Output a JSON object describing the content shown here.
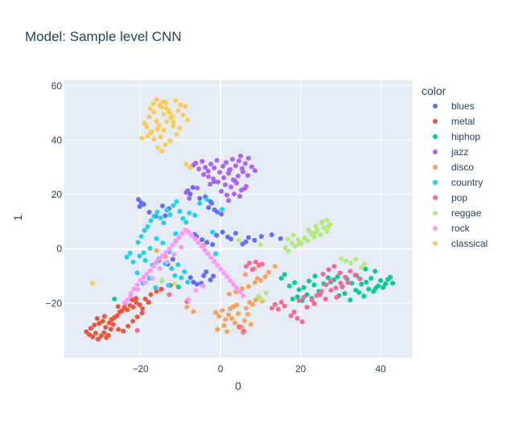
{
  "chart_data": {
    "type": "scatter",
    "title": "Model: Sample level CNN",
    "xlabel": "0",
    "ylabel": "1",
    "xlim": [
      -39,
      48
    ],
    "ylim": [
      -40,
      62
    ],
    "xticks": [
      -20,
      0,
      20,
      40
    ],
    "yticks": [
      -20,
      0,
      20,
      40,
      60
    ],
    "xtick_labels": [
      "−20",
      "0",
      "20",
      "40"
    ],
    "ytick_labels": [
      "−20",
      "0",
      "20",
      "40",
      "60"
    ],
    "grid": true,
    "legend": {
      "title": "color",
      "position": "right"
    },
    "series": [
      {
        "name": "blues",
        "color": "#636efa",
        "x": [
          -20.5,
          -19.8,
          -20.2,
          -19.2,
          -14.5,
          -13.8,
          -12.9,
          -17.8,
          -16.2,
          -7.5,
          -6.8,
          -5.9,
          -4.8,
          -4.2,
          -3.6,
          -2.5,
          -1.8,
          -3.0,
          -2.2,
          -1.5,
          -0.8,
          0.2,
          -6.5,
          -6.0,
          -4.6,
          -3.4,
          -2.0,
          -1.0,
          0.5,
          1.8,
          2.6,
          3.8,
          5.5,
          6.3,
          7.0,
          8.5,
          10.2,
          12.8,
          15.0,
          -8.2,
          -7.6,
          -6.9,
          -5.2,
          -3.8,
          -2.5,
          -1.6,
          -15.4,
          -13.2,
          -11.9
        ],
        "y": [
          18.2,
          17.0,
          15.6,
          16.4,
          15.8,
          12.2,
          14.8,
          13.5,
          12.0,
          -10.5,
          -12.2,
          -13.0,
          -12.6,
          -9.8,
          -8.4,
          -11.4,
          -10.0,
          15.2,
          16.8,
          14.4,
          13.6,
          12.8,
          5.4,
          4.6,
          3.4,
          2.4,
          1.6,
          5.0,
          6.2,
          4.4,
          3.6,
          5.8,
          1.8,
          2.6,
          4.2,
          3.2,
          4.6,
          5.2,
          3.8,
          21.4,
          20.2,
          22.6,
          18.6,
          19.2,
          17.4,
          24.8,
          -4.2,
          -5.6,
          -3.8
        ]
      },
      {
        "name": "metal",
        "color": "#ef553b",
        "x": [
          -33.5,
          -32.8,
          -31.9,
          -31.2,
          -30.6,
          -29.8,
          -29.1,
          -28.5,
          -28.0,
          -27.4,
          -32.4,
          -31.5,
          -30.3,
          -29.4,
          -28.7,
          -27.8,
          -30.8,
          -29.0,
          -27.2,
          -26.5,
          -25.8,
          -25.2,
          -24.6,
          -24.0,
          -23.3,
          -22.6,
          -21.8,
          -21.0,
          -20.2,
          -19.5,
          -26.8,
          -25.5,
          -24.3,
          -23.1,
          -21.9,
          -20.8,
          -19.6,
          -22.0,
          -18.8,
          -18.0,
          -25.6,
          -23.9,
          -22.4,
          -21.1,
          -12.5,
          -14.8,
          -16.0,
          -17.4
        ],
        "y": [
          -30.5,
          -31.5,
          -32.4,
          -31.0,
          -33.2,
          -32.0,
          -30.8,
          -32.6,
          -31.8,
          -29.5,
          -29.2,
          -28.0,
          -27.4,
          -26.6,
          -28.8,
          -27.2,
          -25.6,
          -24.8,
          -26.0,
          -25.2,
          -24.6,
          -23.2,
          -22.8,
          -21.6,
          -22.4,
          -20.8,
          -21.4,
          -19.8,
          -20.6,
          -22.0,
          -27.8,
          -29.6,
          -30.2,
          -28.4,
          -26.6,
          -25.0,
          -23.6,
          -18.8,
          -18.4,
          -19.6,
          -21.2,
          -20.0,
          -17.2,
          -18.2,
          -13.4,
          -14.8,
          -15.6,
          -16.8
        ]
      },
      {
        "name": "hiphop",
        "color": "#00cc96",
        "x": [
          17.2,
          18.5,
          19.6,
          20.8,
          22.1,
          23.4,
          24.6,
          25.8,
          26.9,
          18.0,
          19.2,
          20.4,
          21.6,
          22.8,
          23.6,
          27.5,
          28.3,
          29.2,
          30.4,
          31.6,
          32.8,
          34.0,
          35.2,
          36.4,
          37.6,
          38.8,
          40.0,
          41.2,
          42.4,
          43.0,
          34.6,
          35.8,
          37.0,
          38.2,
          39.4,
          40.6,
          41.8,
          36.2,
          38.6,
          29.6,
          31.0,
          32.4,
          33.8,
          16.0,
          15.2,
          -10.5,
          -26.5
        ],
        "y": [
          -13.6,
          -12.4,
          -15.0,
          -14.2,
          -11.8,
          -13.2,
          -15.6,
          -12.8,
          -10.6,
          -18.4,
          -17.6,
          -19.0,
          -16.8,
          -18.2,
          -10.0,
          -12.2,
          -11.4,
          -10.2,
          -13.8,
          -11.0,
          -12.6,
          -9.8,
          -13.0,
          -12.2,
          -10.8,
          -14.4,
          -11.6,
          -12.8,
          -10.4,
          -12.6,
          -16.0,
          -17.4,
          -14.8,
          -15.6,
          -13.6,
          -14.2,
          -11.2,
          -7.4,
          -8.2,
          -17.2,
          -16.4,
          -18.8,
          -15.2,
          -9.4,
          -10.8,
          -14.0,
          -18.4
        ]
      },
      {
        "name": "jazz",
        "color": "#ab63fa",
        "x": [
          -6.8,
          -6.2,
          -5.4,
          -4.6,
          -3.8,
          -3.1,
          -2.4,
          -1.6,
          -0.9,
          -0.2,
          0.6,
          1.4,
          2.2,
          3.0,
          3.8,
          4.6,
          5.4,
          6.2,
          7.0,
          7.8,
          8.6,
          -4.2,
          -3.0,
          -1.8,
          -0.6,
          0.8,
          2.0,
          3.2,
          4.4,
          5.6,
          6.8,
          1.2,
          2.6,
          4.0,
          5.2,
          6.4,
          3.4,
          4.8,
          6.0,
          2.0,
          3.6,
          5.0,
          -5.8,
          -2.6,
          0.2,
          1.6,
          -8.6,
          -7.8,
          2.4
        ],
        "y": [
          30.8,
          31.6,
          29.4,
          32.2,
          30.0,
          28.6,
          31.2,
          29.8,
          32.6,
          28.2,
          30.4,
          31.8,
          29.0,
          33.0,
          30.6,
          32.4,
          29.6,
          31.4,
          33.4,
          30.2,
          28.8,
          27.4,
          26.6,
          25.8,
          24.6,
          26.2,
          27.8,
          25.4,
          26.8,
          28.4,
          27.0,
          23.6,
          22.8,
          24.2,
          21.6,
          23.0,
          20.2,
          19.4,
          22.2,
          17.8,
          25.0,
          34.2,
          22.4,
          23.8,
          21.2,
          19.8,
          20.8,
          18.6,
          29.2
        ]
      },
      {
        "name": "disco",
        "color": "#ffa15a",
        "x": [
          -1.2,
          -0.4,
          0.4,
          1.2,
          2.0,
          2.8,
          3.6,
          4.4,
          5.2,
          6.0,
          6.8,
          7.6,
          -0.8,
          0.8,
          1.6,
          2.4,
          3.2,
          4.0,
          4.8,
          5.6,
          6.4,
          7.2,
          8.0,
          8.8,
          9.6,
          10.4,
          2.2,
          3.8,
          5.4,
          7.0,
          8.6,
          10.0,
          11.2,
          12.0,
          13.6,
          6.2,
          8.4,
          9.2,
          -6.8,
          -8.4,
          -11.2,
          -13.8,
          -16.0,
          -4.2
        ],
        "y": [
          -23.4,
          -24.8,
          -22.6,
          -26.0,
          -24.2,
          -25.6,
          -27.2,
          -23.8,
          -28.6,
          -26.4,
          -24.0,
          -27.8,
          -29.6,
          -28.2,
          -30.4,
          -22.0,
          -21.2,
          -20.6,
          -29.0,
          -30.8,
          -21.8,
          -19.6,
          -20.4,
          -18.8,
          -17.6,
          -19.2,
          -16.6,
          -15.8,
          -14.6,
          -13.8,
          -12.4,
          -11.6,
          -10.2,
          -8.6,
          -6.4,
          -9.4,
          -7.2,
          -10.8,
          -23.0,
          -21.4,
          3.0,
          -2.8,
          -0.6,
          1.4
        ]
      },
      {
        "name": "country",
        "color": "#19d3f3",
        "x": [
          -20.6,
          -19.8,
          -19.0,
          -18.2,
          -17.4,
          -16.6,
          -15.8,
          -15.0,
          -14.2,
          -13.4,
          -12.6,
          -11.8,
          -11.0,
          -10.2,
          -9.4,
          -8.6,
          -7.8,
          -20.2,
          -18.8,
          -17.0,
          -15.4,
          -13.8,
          -12.2,
          -10.6,
          -9.0,
          -19.4,
          -17.8,
          -16.2,
          -14.6,
          -13.0,
          -11.4,
          -9.8,
          -8.2,
          -21.8,
          -20.8,
          -19.2,
          -17.6,
          -16.0,
          -14.4,
          -12.8,
          -11.2,
          -6.4,
          -5.2,
          -3.4,
          -2.0,
          -1.2,
          0.4,
          -22.6,
          -23.4
        ],
        "y": [
          2.4,
          4.6,
          6.8,
          8.2,
          10.4,
          12.0,
          13.6,
          11.4,
          9.6,
          14.2,
          12.6,
          16.0,
          17.4,
          13.8,
          11.2,
          9.8,
          13.2,
          -2.6,
          -4.2,
          -6.0,
          -3.6,
          -5.4,
          -7.2,
          -5.8,
          -8.4,
          -12.6,
          -10.8,
          -14.2,
          -11.6,
          -13.4,
          -9.8,
          -10.6,
          -12.2,
          -4.8,
          -8.8,
          -1.4,
          0.2,
          3.8,
          2.2,
          -1.0,
          5.6,
          12.4,
          16.8,
          18.2,
          6.2,
          -1.8,
          14.6,
          -1.6,
          -3.0
        ]
      },
      {
        "name": "pop",
        "color": "#ff6692",
        "x": [
          19.2,
          20.4,
          21.6,
          22.8,
          24.0,
          25.2,
          26.4,
          27.6,
          28.8,
          30.0,
          31.2,
          32.4,
          33.6,
          34.8,
          23.4,
          24.8,
          26.2,
          27.6,
          29.0,
          30.4,
          31.8,
          25.6,
          27.0,
          28.4,
          29.8,
          12.8,
          13.6,
          14.4,
          15.2,
          16.0,
          17.6,
          18.4,
          19.6,
          20.8,
          6.4,
          7.2,
          8.0,
          8.8,
          9.6,
          10.4,
          4.6,
          5.8,
          -20.8,
          -12.8,
          -8.4
        ],
        "y": [
          -25.6,
          -26.8,
          -21.4,
          -18.8,
          -17.2,
          -15.6,
          -13.2,
          -11.8,
          -14.4,
          -12.6,
          -10.4,
          -8.2,
          -9.6,
          -11.0,
          -20.2,
          -16.8,
          -18.4,
          -15.2,
          -17.8,
          -14.0,
          -12.4,
          -9.2,
          -7.6,
          -6.4,
          -8.8,
          -21.8,
          -20.4,
          -22.2,
          -19.6,
          -21.0,
          -24.6,
          -23.2,
          -19.0,
          -17.8,
          -6.4,
          -5.2,
          -7.6,
          -4.8,
          -6.0,
          -5.6,
          -28.6,
          -30.2,
          -30.0,
          -16.8,
          -19.4
        ]
      },
      {
        "name": "reggae",
        "color": "#b6e880",
        "x": [
          16.2,
          17.0,
          17.8,
          18.6,
          19.4,
          20.2,
          21.0,
          21.8,
          22.6,
          23.4,
          24.2,
          25.0,
          25.8,
          26.6,
          27.4,
          16.8,
          18.2,
          19.6,
          21.0,
          22.4,
          23.8,
          25.2,
          26.6,
          22.0,
          23.6,
          25.4,
          27.0,
          30.2,
          31.4,
          32.6,
          33.8,
          35.2,
          36.0,
          9.4,
          10.2,
          11.4,
          10.0,
          4.6,
          -14.6,
          -11.4
        ],
        "y": [
          0.4,
          -0.8,
          2.2,
          1.0,
          3.4,
          2.0,
          4.2,
          3.0,
          5.6,
          4.4,
          6.8,
          5.2,
          7.8,
          6.4,
          9.0,
          3.6,
          5.0,
          1.8,
          3.8,
          6.2,
          8.4,
          9.6,
          10.6,
          7.0,
          6.0,
          10.0,
          8.2,
          -3.6,
          -4.4,
          -5.2,
          -3.8,
          -6.8,
          -5.6,
          -17.4,
          -18.6,
          -16.2,
          1.6,
          3.2,
          -11.4,
          -12.8
        ]
      },
      {
        "name": "rock",
        "color": "#ff97ff",
        "x": [
          -24.0,
          -23.2,
          -22.4,
          -21.6,
          -20.8,
          -20.0,
          -19.2,
          -18.4,
          -17.6,
          -16.8,
          -16.0,
          -15.2,
          -14.4,
          -13.6,
          -12.8,
          -12.0,
          -11.2,
          -10.4,
          -9.6,
          -8.8,
          -8.0,
          -7.2,
          -6.4,
          -5.6,
          -4.8,
          -4.0,
          -3.2,
          -2.4,
          -1.6,
          -0.8,
          0.0,
          0.8,
          1.6,
          2.4,
          3.2,
          4.0,
          4.8,
          5.6,
          -22.4,
          -20.6,
          -18.8,
          -17.0,
          -15.2,
          -13.4,
          -11.6,
          -9.8,
          -8.0,
          -6.2,
          -4.4
        ],
        "y": [
          -19.8,
          -18.6,
          -17.2,
          -14.8,
          -13.2,
          -11.6,
          -10.4,
          -9.2,
          -8.0,
          -6.4,
          -5.0,
          -3.6,
          -2.4,
          -1.2,
          0.0,
          1.4,
          2.8,
          4.2,
          5.6,
          7.0,
          6.2,
          5.0,
          3.8,
          2.4,
          1.0,
          -0.4,
          -1.8,
          -3.2,
          -4.6,
          -6.0,
          -7.4,
          -8.8,
          -10.2,
          -11.6,
          -13.0,
          -14.4,
          -15.8,
          -17.2,
          -16.4,
          -15.0,
          -12.4,
          -10.8,
          -7.2,
          -4.8,
          -2.0,
          0.6,
          -18.6,
          -15.2,
          -13.6
        ]
      },
      {
        "name": "classical",
        "color": "#fecb52",
        "x": [
          -19.0,
          -18.4,
          -17.8,
          -17.2,
          -16.6,
          -16.0,
          -15.4,
          -14.8,
          -14.2,
          -13.6,
          -13.0,
          -12.4,
          -11.8,
          -11.2,
          -10.6,
          -10.0,
          -9.4,
          -8.8,
          -8.2,
          -18.2,
          -17.4,
          -16.6,
          -15.8,
          -15.0,
          -14.2,
          -13.4,
          -12.6,
          -11.8,
          -11.0,
          -10.2,
          -17.6,
          -16.8,
          -16.0,
          -15.2,
          -14.4,
          -13.6,
          -12.8,
          -12.0,
          -15.6,
          -14.6,
          -13.8,
          -19.6,
          -7.6,
          -8.6,
          -32.0
        ],
        "y": [
          46.2,
          44.8,
          48.6,
          43.2,
          50.4,
          47.0,
          45.4,
          52.2,
          49.6,
          53.8,
          51.0,
          48.2,
          46.6,
          54.6,
          50.8,
          53.0,
          49.2,
          52.4,
          47.4,
          41.6,
          42.8,
          40.4,
          44.0,
          41.2,
          43.6,
          46.8,
          39.8,
          45.2,
          42.2,
          44.4,
          51.6,
          53.4,
          55.0,
          52.8,
          54.2,
          51.8,
          50.2,
          48.8,
          37.2,
          36.0,
          38.4,
          40.8,
          30.0,
          31.2,
          -12.6
        ]
      }
    ]
  }
}
